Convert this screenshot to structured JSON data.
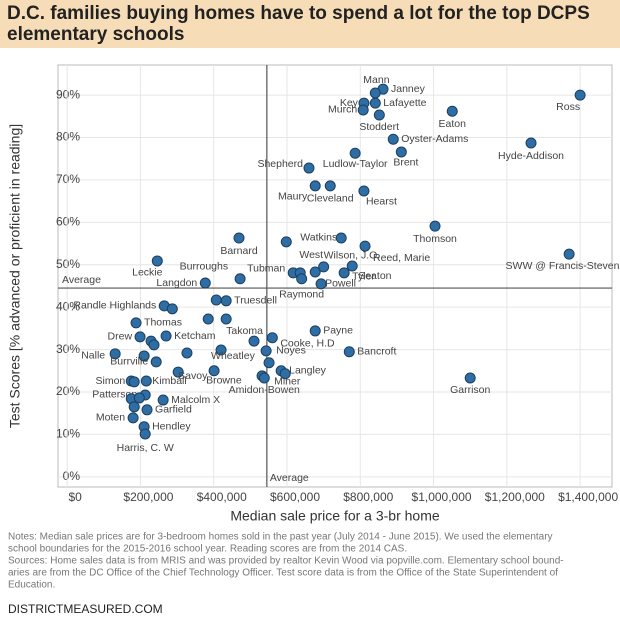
{
  "chart_data": {
    "type": "scatter",
    "title": "D.C. families buying homes have to spend a lot for the top DCPS elementary schools",
    "x_label": "Median sale price for a 3-br home",
    "y_label": "Test Scores [% advanced or proficient in reading]",
    "color": "#2f6ea5",
    "x": [
      862000,
      841000,
      810000,
      841000,
      808000,
      852000,
      1051000,
      1400000,
      890000,
      1266000,
      786000,
      912000,
      660000,
      677000,
      718000,
      810000,
      1004000,
      469000,
      598000,
      748000,
      813000,
      1370000,
      246000,
      778000,
      677000,
      617000,
      636000,
      756000,
      700000,
      693000,
      640000,
      377000,
      472000,
      265000,
      287000,
      434000,
      407000,
      188000,
      385000,
      434000,
      270000,
      199000,
      229000,
      237000,
      677000,
      560000,
      510000,
      131000,
      210000,
      327000,
      420000,
      543000,
      770000,
      243000,
      551000,
      303000,
      401000,
      584000,
      595000,
      532000,
      538000,
      175000,
      183000,
      216000,
      1100000,
      213000,
      175000,
      197000,
      262000,
      183000,
      218000,
      180000,
      210000,
      213000
    ],
    "values": [
      91.4,
      90.5,
      88.1,
      88.1,
      86.5,
      85.3,
      86.2,
      90,
      79.6,
      78.7,
      76.3,
      76.6,
      72.8,
      68.6,
      68.6,
      67.4,
      59.1,
      56.3,
      55.4,
      56.3,
      54.4,
      52.5,
      50.9,
      49.7,
      48.3,
      48.1,
      48.1,
      48.1,
      49.5,
      45.5,
      46.7,
      45.7,
      46.7,
      40.3,
      39.6,
      41.5,
      41.7,
      36.3,
      37.2,
      37.2,
      33.2,
      33,
      32,
      31.1,
      34.4,
      32.8,
      32,
      29,
      28.5,
      29.2,
      29.9,
      29.7,
      29.5,
      27.1,
      26.9,
      24.7,
      25,
      25,
      24.3,
      23.8,
      23.3,
      22.6,
      22.4,
      22.6,
      23.3,
      19.3,
      18.4,
      18.6,
      18.1,
      16.5,
      15.8,
      13.9,
      11.8,
      10.1
    ],
    "labels": [
      "Janney",
      "Mann",
      "Key",
      "Lafayette",
      "Murch",
      "Stoddert",
      "Eaton",
      "Ross",
      "Oyster-Adams",
      "Hyde-Addison",
      "Ludlow-Taylor",
      "Brent",
      "Shepherd",
      "Maury",
      "Cleveland",
      "Hearst",
      "Thomson",
      "Barnard",
      "Watkins",
      null,
      "Reed, Marie",
      "SWW @ Francis-Stevens",
      "Leckie",
      "Seaton",
      "West",
      "Tubman",
      null,
      "Tyler",
      "Wilson, J.O.",
      "Powell",
      "Raymond",
      "Langdon",
      "Burroughs",
      "Randle Highlands",
      null,
      "Truesdell",
      null,
      "Thomas",
      null,
      "Takoma",
      "Ketcham",
      "Drew",
      null,
      null,
      "Payne",
      "Cooke, H.D",
      null,
      "Nalle",
      null,
      null,
      "Wheatley",
      "Noyes",
      "Bancroft",
      "Burrville",
      null,
      "Savoy",
      "Browne",
      "Langley",
      null,
      "Miner",
      "Amidon-Bowen",
      "Simon",
      null,
      "Kimball",
      "Garrison",
      "Patterson",
      null,
      null,
      "Malcolm X",
      null,
      "Garfield",
      "Moten",
      "Hendley",
      "Harris, C. W"
    ],
    "xlim": [
      -25000,
      1487000
    ],
    "ylim": [
      -2.4,
      97.1
    ],
    "xticks": [
      {
        "value": 0,
        "label": "$0"
      },
      {
        "value": 200000,
        "label": "$200,000"
      },
      {
        "value": 400000,
        "label": "$400,000"
      },
      {
        "value": 600000,
        "label": "$600,000"
      },
      {
        "value": 800000,
        "label": "$800,000"
      },
      {
        "value": 1000000,
        "label": "$1,000,000"
      },
      {
        "value": 1200000,
        "label": "$1,200,000"
      },
      {
        "value": 1400000,
        "label": "$1,400,000"
      }
    ],
    "yticks": [
      {
        "value": 0,
        "label": "0%"
      },
      {
        "value": 10,
        "label": "10%"
      },
      {
        "value": 20,
        "label": "20%"
      },
      {
        "value": 30,
        "label": "30%"
      },
      {
        "value": 40,
        "label": "40%"
      },
      {
        "value": 50,
        "label": "50%"
      },
      {
        "value": 60,
        "label": "60%"
      },
      {
        "value": 70,
        "label": "70%"
      },
      {
        "value": 80,
        "label": "80%"
      },
      {
        "value": 90,
        "label": "90%"
      }
    ],
    "grid": true,
    "reference_lines": [
      {
        "axis": "x",
        "value": 545000,
        "label": "Average"
      },
      {
        "axis": "y",
        "value": 44.5,
        "label": "Average"
      }
    ],
    "notes": [
      "Notes: Median sale prices are for 3-bedroom homes sold in the past year (July 2014 - June 2015). We used the elementary",
      "school boundaries for the 2015-2016 school year. Reading scores are from the 2014 CAS.",
      "Sources: Home sales data is from MRIS and was provided by realtor Kevin Wood via popville.com. Elementary school bound-",
      "aries are from the DC Office of the Chief Technology Officer. Test score data is from the Office of the State Superintendent of",
      "Education."
    ],
    "footer": "DISTRICTMEASURED.COM"
  }
}
